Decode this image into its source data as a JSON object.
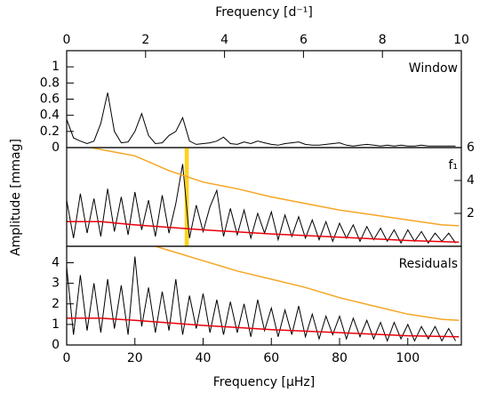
{
  "ylabel": "Amplitude [mmag]",
  "chart_data": [
    {
      "type": "line",
      "label": "Window",
      "x2label": "Frequency [d⁻¹]",
      "x2lim": [
        0,
        10
      ],
      "x2ticks": [
        0,
        2,
        4,
        6,
        8,
        10
      ],
      "xlim": [
        0,
        115.7
      ],
      "ylim": [
        0,
        1.2
      ],
      "yticks": [
        0,
        0.2,
        0.4,
        0.6,
        0.8,
        1
      ],
      "ytick_side": "left",
      "series": [
        {
          "color": "#000000",
          "x": [
            0,
            2,
            4,
            6,
            8,
            10,
            12,
            14,
            16,
            18,
            20,
            22,
            24,
            26,
            28,
            30,
            32,
            34,
            36,
            38,
            40,
            42,
            44,
            46,
            48,
            50,
            52,
            54,
            56,
            58,
            60,
            62,
            64,
            66,
            68,
            70,
            72,
            74,
            76,
            78,
            80,
            82,
            84,
            86,
            88,
            90,
            92,
            94,
            96,
            98,
            100,
            102,
            104,
            106,
            108,
            110,
            112,
            114
          ],
          "values": [
            0.35,
            0.12,
            0.08,
            0.05,
            0.08,
            0.3,
            0.68,
            0.2,
            0.06,
            0.07,
            0.2,
            0.42,
            0.15,
            0.05,
            0.06,
            0.15,
            0.2,
            0.37,
            0.08,
            0.04,
            0.05,
            0.06,
            0.08,
            0.13,
            0.05,
            0.04,
            0.07,
            0.05,
            0.08,
            0.06,
            0.04,
            0.03,
            0.05,
            0.06,
            0.07,
            0.04,
            0.03,
            0.03,
            0.04,
            0.05,
            0.06,
            0.03,
            0.02,
            0.03,
            0.04,
            0.03,
            0.02,
            0.03,
            0.02,
            0.03,
            0.02,
            0.02,
            0.03,
            0.02,
            0.02,
            0.02,
            0.02,
            0.02
          ]
        }
      ]
    },
    {
      "type": "line",
      "label": "f₁",
      "xlim": [
        0,
        115.7
      ],
      "ylim": [
        0,
        6
      ],
      "yticks": [
        2,
        4,
        6
      ],
      "ytick_side": "right",
      "highlight": [
        34.6,
        35.8
      ],
      "highlight_color": "#ffd21f",
      "series": [
        {
          "color": "#000000",
          "x": [
            0,
            2,
            4,
            6,
            8,
            10,
            12,
            14,
            16,
            18,
            20,
            22,
            24,
            26,
            28,
            30,
            32,
            34,
            36,
            38,
            40,
            42,
            44,
            46,
            48,
            50,
            52,
            54,
            56,
            58,
            60,
            62,
            64,
            66,
            68,
            70,
            72,
            74,
            76,
            78,
            80,
            82,
            84,
            86,
            88,
            90,
            92,
            94,
            96,
            98,
            100,
            102,
            104,
            106,
            108,
            110,
            112,
            114
          ],
          "values": [
            2.8,
            0.5,
            3.2,
            0.8,
            2.9,
            0.6,
            3.5,
            0.9,
            3.0,
            0.7,
            3.3,
            1.0,
            2.8,
            0.6,
            3.1,
            0.8,
            2.6,
            5.0,
            0.5,
            2.5,
            0.9,
            2.4,
            3.4,
            0.6,
            2.3,
            0.7,
            2.2,
            0.5,
            2.0,
            0.8,
            2.1,
            0.4,
            1.9,
            0.6,
            1.8,
            0.5,
            1.6,
            0.4,
            1.5,
            0.3,
            1.4,
            0.5,
            1.3,
            0.3,
            1.2,
            0.4,
            1.1,
            0.3,
            1.0,
            0.2,
            1.0,
            0.3,
            0.9,
            0.2,
            0.8,
            0.3,
            0.8,
            0.2
          ]
        },
        {
          "color": "#f5a623",
          "x": [
            7,
            20,
            30,
            40,
            50,
            60,
            70,
            80,
            90,
            100,
            110,
            115
          ],
          "values": [
            6,
            5.5,
            4.6,
            3.9,
            3.5,
            3.0,
            2.6,
            2.2,
            1.9,
            1.6,
            1.3,
            1.25
          ]
        },
        {
          "color": "#e8000b",
          "x": [
            0,
            10,
            20,
            40,
            60,
            80,
            100,
            115
          ],
          "values": [
            1.5,
            1.5,
            1.3,
            1.0,
            0.75,
            0.55,
            0.35,
            0.25
          ]
        }
      ]
    },
    {
      "type": "line",
      "label": "Residuals",
      "xlabel": "Frequency [μHz]",
      "xlim": [
        0,
        115.7
      ],
      "xticks": [
        0,
        20,
        40,
        60,
        80,
        100
      ],
      "ylim": [
        0,
        4.8
      ],
      "yticks": [
        0,
        1,
        2,
        3,
        4
      ],
      "ytick_side": "left",
      "series": [
        {
          "color": "#000000",
          "x": [
            0,
            2,
            4,
            6,
            8,
            10,
            12,
            14,
            16,
            18,
            20,
            22,
            24,
            26,
            28,
            30,
            32,
            34,
            36,
            38,
            40,
            42,
            44,
            46,
            48,
            50,
            52,
            54,
            56,
            58,
            60,
            62,
            64,
            66,
            68,
            70,
            72,
            74,
            76,
            78,
            80,
            82,
            84,
            86,
            88,
            90,
            92,
            94,
            96,
            98,
            100,
            102,
            104,
            106,
            108,
            110,
            112,
            114
          ],
          "values": [
            3.8,
            0.5,
            3.4,
            0.7,
            3.0,
            0.6,
            3.2,
            0.8,
            2.9,
            0.5,
            4.3,
            0.9,
            2.8,
            0.6,
            2.6,
            0.7,
            3.2,
            0.5,
            2.4,
            0.8,
            2.5,
            0.6,
            2.2,
            0.5,
            2.1,
            0.6,
            2.0,
            0.4,
            2.2,
            0.7,
            1.8,
            0.4,
            1.7,
            0.5,
            1.9,
            0.4,
            1.5,
            0.3,
            1.4,
            0.5,
            1.4,
            0.3,
            1.3,
            0.4,
            1.2,
            0.3,
            1.1,
            0.2,
            1.1,
            0.3,
            1.0,
            0.2,
            0.9,
            0.3,
            0.9,
            0.2,
            0.8,
            0.2
          ]
        },
        {
          "color": "#f5a623",
          "x": [
            26,
            40,
            50,
            60,
            70,
            80,
            90,
            100,
            110,
            115
          ],
          "values": [
            4.8,
            4.1,
            3.6,
            3.2,
            2.8,
            2.3,
            1.9,
            1.5,
            1.25,
            1.2
          ]
        },
        {
          "color": "#e8000b",
          "x": [
            0,
            10,
            20,
            40,
            60,
            80,
            100,
            115
          ],
          "values": [
            1.3,
            1.3,
            1.2,
            0.95,
            0.75,
            0.6,
            0.45,
            0.4
          ]
        }
      ]
    }
  ]
}
